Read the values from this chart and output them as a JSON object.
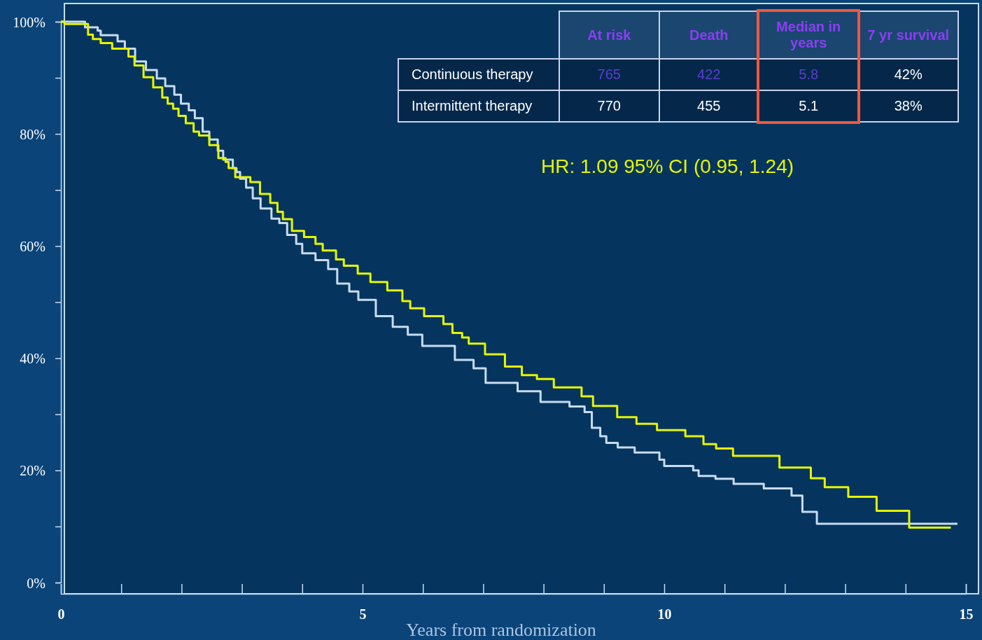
{
  "chart_data": {
    "type": "step",
    "xlabel": "Years from randomization",
    "xlim": [
      0,
      15
    ],
    "ylim": [
      0,
      100
    ],
    "xticks": [
      0,
      {
        "value": 1,
        "label": null
      },
      {
        "value": 2,
        "label": null
      },
      {
        "value": 3,
        "label": null
      },
      {
        "value": 4,
        "label": null
      },
      5,
      {
        "value": 6,
        "label": null
      },
      {
        "value": 7,
        "label": null
      },
      {
        "value": 8,
        "label": null
      },
      {
        "value": 9,
        "label": null
      },
      10,
      {
        "value": 11,
        "label": null
      },
      {
        "value": 12,
        "label": null
      },
      {
        "value": 13,
        "label": null
      },
      {
        "value": 14,
        "label": null
      },
      15
    ],
    "yticks": [
      {
        "value": 0,
        "label": "0%"
      },
      {
        "value": 10,
        "label": null
      },
      {
        "value": 20,
        "label": "20%"
      },
      {
        "value": 30,
        "label": null
      },
      {
        "value": 40,
        "label": "40%"
      },
      {
        "value": 50,
        "label": null
      },
      {
        "value": 60,
        "label": "60%"
      },
      {
        "value": 70,
        "label": null
      },
      {
        "value": 80,
        "label": "80%"
      },
      {
        "value": 90,
        "label": null
      },
      {
        "value": 100,
        "label": "100%"
      }
    ],
    "grid": false,
    "marker": "none",
    "line_style": "solid",
    "series": [
      {
        "color": "#c8dcf0",
        "x": [
          0,
          0.4,
          0.61,
          0.66,
          0.94,
          1.06,
          1.23,
          1.41,
          1.59,
          1.73,
          1.88,
          1.99,
          2.12,
          2.22,
          2.35,
          2.46,
          2.6,
          2.69,
          2.85,
          2.91,
          2.97,
          3.07,
          3.18,
          3.31,
          3.49,
          3.62,
          3.75,
          3.9,
          4.0,
          4.22,
          4.43,
          4.58,
          4.78,
          4.93,
          5.22,
          5.5,
          5.75,
          5.99,
          6.53,
          6.84,
          7.04,
          7.57,
          7.95,
          8.43,
          8.68,
          8.8,
          8.94,
          9.04,
          9.23,
          9.51,
          9.92,
          10.0,
          10.48,
          10.57,
          10.85,
          11.15,
          11.65,
          12.11,
          12.29,
          12.53,
          14.86
        ],
        "values": [
          100,
          99.0,
          98.4,
          97.6,
          96.5,
          95.2,
          92.9,
          91.4,
          89.9,
          88.5,
          87.0,
          85.4,
          84.2,
          82.8,
          80.4,
          79.0,
          77.0,
          75.4,
          73.9,
          73.2,
          72.0,
          70.4,
          68.5,
          66.7,
          64.9,
          64.1,
          62.0,
          60.4,
          58.7,
          57.5,
          55.9,
          53.3,
          51.9,
          50.4,
          47.5,
          45.6,
          44.2,
          42.2,
          39.7,
          38.2,
          35.6,
          34.1,
          32.2,
          31.4,
          30.4,
          27.6,
          26.1,
          24.9,
          24.1,
          23.2,
          21.9,
          20.8,
          20.0,
          19.0,
          18.5,
          17.6,
          16.8,
          15.5,
          12.6,
          10.5,
          10.5
        ]
      },
      {
        "color": "#e6f500",
        "x": [
          0,
          0.06,
          0.45,
          0.53,
          0.66,
          0.85,
          1.12,
          1.22,
          1.37,
          1.53,
          1.68,
          1.77,
          1.86,
          1.95,
          2.07,
          2.2,
          2.29,
          2.46,
          2.61,
          2.73,
          2.78,
          2.89,
          3.14,
          3.3,
          3.47,
          3.59,
          3.68,
          3.83,
          4.03,
          4.22,
          4.34,
          4.56,
          4.69,
          4.92,
          5.13,
          5.41,
          5.66,
          5.79,
          6.02,
          6.34,
          6.49,
          6.65,
          6.76,
          7.03,
          7.36,
          7.64,
          7.89,
          8.17,
          8.63,
          8.82,
          9.22,
          9.54,
          9.88,
          10.35,
          10.65,
          10.86,
          11.14,
          11.91,
          12.43,
          12.66,
          13.05,
          13.52,
          14.06,
          14.75
        ],
        "values": [
          100,
          99.6,
          97.7,
          96.9,
          96.2,
          95.2,
          93.8,
          92.2,
          90.1,
          88.3,
          86.5,
          85.4,
          84.5,
          83.2,
          81.9,
          80.4,
          79.7,
          78.0,
          75.7,
          75.0,
          73.9,
          72.3,
          71.4,
          69.3,
          67.7,
          66.1,
          64.8,
          62.7,
          61.6,
          60.4,
          59.2,
          57.6,
          56.5,
          55.1,
          53.6,
          52.1,
          50.2,
          48.9,
          47.5,
          46.1,
          44.5,
          43.7,
          42.6,
          40.7,
          38.5,
          37.0,
          36.3,
          34.8,
          33.2,
          31.5,
          29.5,
          28.3,
          27.2,
          26.1,
          24.7,
          23.9,
          22.6,
          20.5,
          18.6,
          17.0,
          15.3,
          12.8,
          9.8,
          9.8
        ]
      }
    ],
    "annotations": [
      "At risk",
      "Death",
      "Median in years",
      "7 yr survival",
      "Continuous therapy",
      "765",
      "422",
      "5.8",
      "42%",
      "Intermittent therapy",
      "770",
      "455",
      "5.1",
      "38%",
      "HR: 1.09 95% CI (0.95, 1.24)"
    ]
  }
}
